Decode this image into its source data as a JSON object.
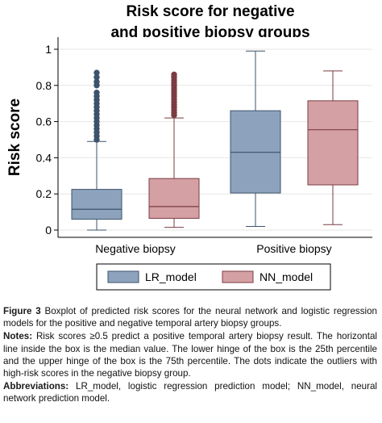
{
  "chart_data": {
    "type": "boxplot",
    "title_lines": [
      "Risk score for negative",
      "and positive biopsy groups"
    ],
    "xlabel": "",
    "ylabel": "Risk score",
    "ylim": [
      0,
      1
    ],
    "y_ticks": [
      {
        "value": 0,
        "label": "0"
      },
      {
        "value": 0.2,
        "label": "0.2"
      },
      {
        "value": 0.4,
        "label": "0.4"
      },
      {
        "value": 0.6,
        "label": "0.6"
      },
      {
        "value": 0.8,
        "label": "0.8"
      },
      {
        "value": 1,
        "label": "1"
      }
    ],
    "grid": true,
    "legend_position": "bottom",
    "categories": [
      "Negative biopsy",
      "Positive biopsy"
    ],
    "series": [
      {
        "name": "LR_model",
        "color": "#8da3bd",
        "edge": "#3c536b",
        "boxes": [
          {
            "whisker_low": 0.0,
            "q1": 0.06,
            "median": 0.115,
            "q3": 0.225,
            "whisker_high": 0.49,
            "outliers": [
              0.5,
              0.52,
              0.54,
              0.56,
              0.58,
              0.6,
              0.62,
              0.64,
              0.66,
              0.68,
              0.7,
              0.72,
              0.74,
              0.76,
              0.8,
              0.82,
              0.845,
              0.87
            ]
          },
          {
            "whisker_low": 0.02,
            "q1": 0.205,
            "median": 0.43,
            "q3": 0.66,
            "whisker_high": 0.99,
            "outliers": []
          }
        ]
      },
      {
        "name": "NN_model",
        "color": "#d4a0a4",
        "edge": "#7a3c42",
        "boxes": [
          {
            "whisker_low": 0.015,
            "q1": 0.065,
            "median": 0.13,
            "q3": 0.285,
            "whisker_high": 0.62,
            "outliers": [
              0.635,
              0.65,
              0.665,
              0.68,
              0.695,
              0.71,
              0.725,
              0.74,
              0.755,
              0.77,
              0.785,
              0.8,
              0.815,
              0.83,
              0.845,
              0.86
            ]
          },
          {
            "whisker_low": 0.03,
            "q1": 0.25,
            "median": 0.555,
            "q3": 0.715,
            "whisker_high": 0.88,
            "outliers": []
          }
        ]
      }
    ]
  },
  "caption": {
    "figure_label": "Figure 3",
    "figure_text": "Boxplot of predicted risk scores for the neural network and logistic regression models for the positive and negative temporal artery biopsy groups.",
    "notes_label": "Notes:",
    "notes_text": "Risk scores ≥0.5 predict a positive temporal artery biopsy result. The horizontal line inside the box is the median value. The lower hinge of the box is the 25th percentile and the upper hinge of the box is the 75th percentile. The dots indicate the outliers with high-risk scores in the negative biopsy group.",
    "abbreviations_label": "Abbreviations:",
    "abbreviations_text": "LR_model, logistic regression prediction model; NN_model, neural network prediction model."
  }
}
